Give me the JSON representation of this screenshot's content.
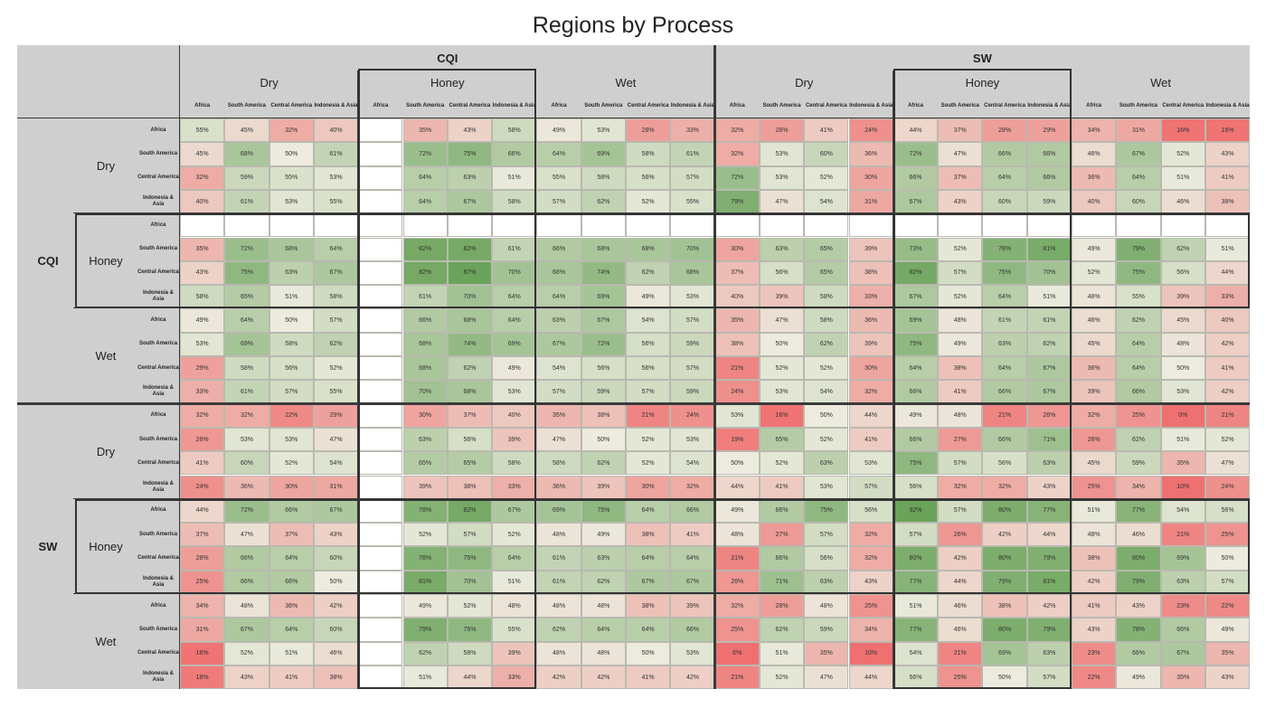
{
  "chart_data": {
    "type": "heatmap",
    "title": "Regions by Process",
    "systems": [
      "CQI",
      "SW"
    ],
    "processes": [
      "Dry",
      "Honey",
      "Wet"
    ],
    "regions": [
      "Africa",
      "South America",
      "Central America",
      "Indonesia & Asia"
    ],
    "colors": {
      "low": "#ef7070",
      "mid": "#ecebde",
      "high": "#6aa35a",
      "empty": "#ffffff",
      "header": "#cfcfcf"
    },
    "values": [
      [
        "55%",
        "45%",
        "32%",
        "40%",
        "",
        "35%",
        "43%",
        "58%",
        "49%",
        "53%",
        "28%",
        "33%",
        "32%",
        "28%",
        "41%",
        "24%",
        "44%",
        "37%",
        "28%",
        "29%",
        "34%",
        "31%",
        "16%",
        "16%"
      ],
      [
        "45%",
        "68%",
        "50%",
        "61%",
        "",
        "72%",
        "75%",
        "66%",
        "64%",
        "69%",
        "58%",
        "61%",
        "32%",
        "53%",
        "60%",
        "36%",
        "72%",
        "47%",
        "66%",
        "66%",
        "46%",
        "67%",
        "52%",
        "43%"
      ],
      [
        "32%",
        "59%",
        "55%",
        "53%",
        "",
        "64%",
        "63%",
        "51%",
        "55%",
        "58%",
        "56%",
        "57%",
        "72%",
        "53%",
        "52%",
        "30%",
        "66%",
        "37%",
        "64%",
        "66%",
        "36%",
        "64%",
        "51%",
        "41%"
      ],
      [
        "40%",
        "61%",
        "53%",
        "55%",
        "",
        "64%",
        "67%",
        "58%",
        "57%",
        "62%",
        "52%",
        "55%",
        "79%",
        "47%",
        "54%",
        "31%",
        "67%",
        "43%",
        "60%",
        "59%",
        "40%",
        "60%",
        "46%",
        "38%"
      ],
      [
        "",
        "",
        "",
        "",
        "",
        "",
        "",
        "",
        "",
        "",
        "",
        "",
        "",
        "",
        "",
        "",
        "",
        "",
        "",
        "",
        "",
        "",
        "",
        ""
      ],
      [
        "35%",
        "72%",
        "68%",
        "64%",
        "",
        "82%",
        "82%",
        "61%",
        "66%",
        "68%",
        "68%",
        "70%",
        "30%",
        "63%",
        "65%",
        "39%",
        "73%",
        "52%",
        "78%",
        "81%",
        "49%",
        "79%",
        "62%",
        "51%"
      ],
      [
        "43%",
        "75%",
        "63%",
        "67%",
        "",
        "82%",
        "87%",
        "70%",
        "68%",
        "74%",
        "62%",
        "68%",
        "37%",
        "56%",
        "65%",
        "38%",
        "82%",
        "57%",
        "75%",
        "70%",
        "52%",
        "75%",
        "56%",
        "44%"
      ],
      [
        "58%",
        "65%",
        "51%",
        "58%",
        "",
        "61%",
        "70%",
        "64%",
        "64%",
        "69%",
        "49%",
        "53%",
        "40%",
        "39%",
        "58%",
        "33%",
        "67%",
        "52%",
        "64%",
        "51%",
        "48%",
        "55%",
        "39%",
        "33%"
      ],
      [
        "49%",
        "64%",
        "50%",
        "57%",
        "",
        "66%",
        "68%",
        "64%",
        "63%",
        "67%",
        "54%",
        "57%",
        "35%",
        "47%",
        "58%",
        "36%",
        "69%",
        "48%",
        "61%",
        "61%",
        "46%",
        "62%",
        "45%",
        "40%"
      ],
      [
        "53%",
        "69%",
        "58%",
        "62%",
        "",
        "68%",
        "74%",
        "69%",
        "67%",
        "72%",
        "56%",
        "59%",
        "38%",
        "50%",
        "62%",
        "39%",
        "75%",
        "49%",
        "63%",
        "62%",
        "45%",
        "64%",
        "48%",
        "42%"
      ],
      [
        "29%",
        "58%",
        "56%",
        "52%",
        "",
        "68%",
        "62%",
        "49%",
        "54%",
        "56%",
        "56%",
        "57%",
        "21%",
        "52%",
        "52%",
        "30%",
        "64%",
        "38%",
        "64%",
        "67%",
        "36%",
        "64%",
        "50%",
        "41%"
      ],
      [
        "33%",
        "61%",
        "57%",
        "55%",
        "",
        "70%",
        "68%",
        "53%",
        "57%",
        "59%",
        "57%",
        "59%",
        "24%",
        "53%",
        "54%",
        "32%",
        "66%",
        "41%",
        "66%",
        "67%",
        "39%",
        "66%",
        "53%",
        "42%"
      ],
      [
        "32%",
        "32%",
        "22%",
        "29%",
        "",
        "30%",
        "37%",
        "40%",
        "35%",
        "38%",
        "21%",
        "24%",
        "53%",
        "16%",
        "50%",
        "44%",
        "49%",
        "48%",
        "21%",
        "26%",
        "32%",
        "25%",
        "0%",
        "21%"
      ],
      [
        "26%",
        "53%",
        "53%",
        "47%",
        "",
        "63%",
        "56%",
        "39%",
        "47%",
        "50%",
        "52%",
        "53%",
        "19%",
        "65%",
        "52%",
        "41%",
        "66%",
        "27%",
        "66%",
        "71%",
        "26%",
        "62%",
        "51%",
        "52%"
      ],
      [
        "41%",
        "60%",
        "52%",
        "54%",
        "",
        "65%",
        "65%",
        "58%",
        "58%",
        "62%",
        "52%",
        "54%",
        "50%",
        "52%",
        "63%",
        "53%",
        "75%",
        "57%",
        "56%",
        "63%",
        "45%",
        "59%",
        "35%",
        "47%"
      ],
      [
        "24%",
        "36%",
        "30%",
        "31%",
        "",
        "39%",
        "38%",
        "33%",
        "36%",
        "39%",
        "30%",
        "32%",
        "44%",
        "41%",
        "53%",
        "57%",
        "56%",
        "32%",
        "32%",
        "43%",
        "25%",
        "34%",
        "10%",
        "24%"
      ],
      [
        "44%",
        "72%",
        "66%",
        "67%",
        "",
        "78%",
        "82%",
        "67%",
        "69%",
        "75%",
        "64%",
        "66%",
        "49%",
        "66%",
        "75%",
        "56%",
        "92%",
        "57%",
        "80%",
        "77%",
        "51%",
        "77%",
        "54%",
        "56%"
      ],
      [
        "37%",
        "47%",
        "37%",
        "43%",
        "",
        "52%",
        "57%",
        "52%",
        "48%",
        "49%",
        "38%",
        "41%",
        "48%",
        "27%",
        "57%",
        "32%",
        "57%",
        "26%",
        "42%",
        "44%",
        "48%",
        "46%",
        "21%",
        "25%"
      ],
      [
        "28%",
        "66%",
        "64%",
        "60%",
        "",
        "78%",
        "75%",
        "64%",
        "61%",
        "63%",
        "64%",
        "64%",
        "21%",
        "66%",
        "56%",
        "32%",
        "80%",
        "42%",
        "80%",
        "79%",
        "38%",
        "80%",
        "69%",
        "50%"
      ],
      [
        "25%",
        "66%",
        "66%",
        "50%",
        "",
        "81%",
        "70%",
        "51%",
        "61%",
        "62%",
        "67%",
        "67%",
        "26%",
        "71%",
        "63%",
        "43%",
        "77%",
        "44%",
        "79%",
        "81%",
        "42%",
        "79%",
        "63%",
        "57%"
      ],
      [
        "34%",
        "48%",
        "36%",
        "42%",
        "",
        "49%",
        "52%",
        "48%",
        "48%",
        "48%",
        "38%",
        "39%",
        "32%",
        "28%",
        "48%",
        "25%",
        "51%",
        "46%",
        "38%",
        "42%",
        "41%",
        "43%",
        "23%",
        "22%"
      ],
      [
        "31%",
        "67%",
        "64%",
        "60%",
        "",
        "79%",
        "75%",
        "55%",
        "62%",
        "64%",
        "64%",
        "66%",
        "25%",
        "62%",
        "59%",
        "34%",
        "77%",
        "46%",
        "80%",
        "79%",
        "43%",
        "78%",
        "66%",
        "49%"
      ],
      [
        "16%",
        "52%",
        "51%",
        "46%",
        "",
        "62%",
        "58%",
        "39%",
        "48%",
        "48%",
        "50%",
        "53%",
        "6%",
        "51%",
        "35%",
        "10%",
        "54%",
        "21%",
        "69%",
        "63%",
        "23%",
        "66%",
        "67%",
        "35%"
      ],
      [
        "18%",
        "43%",
        "41%",
        "38%",
        "",
        "51%",
        "44%",
        "33%",
        "42%",
        "42%",
        "41%",
        "42%",
        "21%",
        "52%",
        "47%",
        "44%",
        "56%",
        "25%",
        "50%",
        "57%",
        "22%",
        "49%",
        "35%",
        "43%"
      ]
    ]
  }
}
